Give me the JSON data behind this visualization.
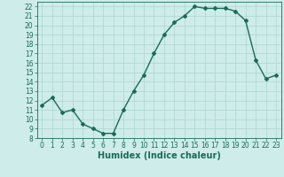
{
  "title": "",
  "xlabel": "Humidex (Indice chaleur)",
  "x": [
    0,
    1,
    2,
    3,
    4,
    5,
    6,
    7,
    8,
    9,
    10,
    11,
    12,
    13,
    14,
    15,
    16,
    17,
    18,
    19,
    20,
    21,
    22,
    23
  ],
  "y": [
    11.5,
    12.3,
    10.7,
    11.0,
    9.5,
    9.0,
    8.5,
    8.5,
    11.0,
    13.0,
    14.7,
    17.0,
    19.0,
    20.3,
    21.0,
    22.0,
    21.8,
    21.8,
    21.8,
    21.5,
    20.5,
    16.3,
    14.3,
    14.7
  ],
  "line_color": "#1a6b5a",
  "marker": "D",
  "marker_size": 2.0,
  "bg_color": "#cdecea",
  "grid_color": "#aed4d0",
  "ylim": [
    8,
    22.5
  ],
  "yticks": [
    8,
    9,
    10,
    11,
    12,
    13,
    14,
    15,
    16,
    17,
    18,
    19,
    20,
    21,
    22
  ],
  "xtick_labels": [
    "0",
    "1",
    "2",
    "3",
    "4",
    "5",
    "6",
    "7",
    "8",
    "9",
    "10",
    "11",
    "12",
    "13",
    "14",
    "15",
    "16",
    "17",
    "18",
    "19",
    "20",
    "21",
    "22",
    "23"
  ],
  "linewidth": 1.0,
  "xlabel_fontsize": 7.0,
  "tick_fontsize": 5.5
}
